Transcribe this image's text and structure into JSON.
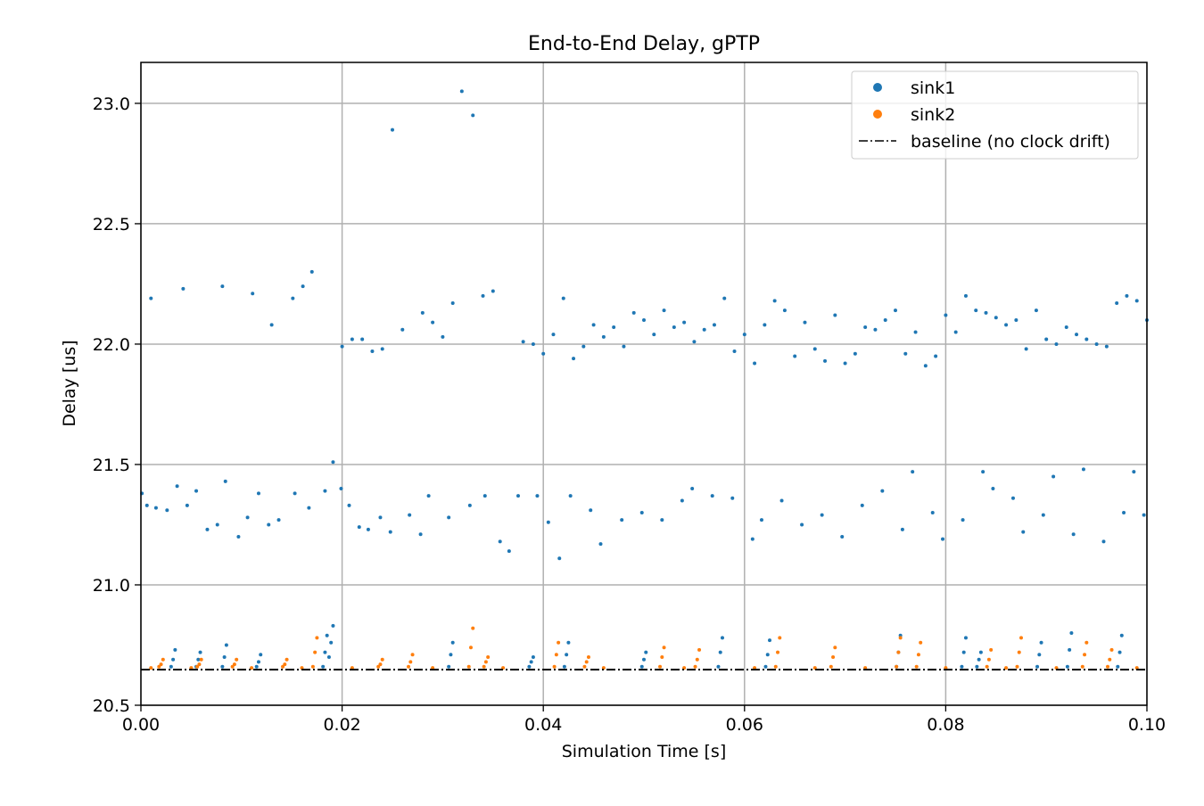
{
  "chart_data": {
    "type": "scatter",
    "title": "End-to-End Delay, gPTP",
    "x_label": "Simulation Time [s]",
    "y_label": "Delay [us]",
    "xlim": [
      0,
      0.1
    ],
    "ylim": [
      20.5,
      23.17
    ],
    "xticks": [
      {
        "value": 0,
        "label": "0.00"
      },
      0.02,
      0.04,
      0.06,
      0.08,
      {
        "value": 0.1,
        "label": "0.10"
      }
    ],
    "yticks": [
      20.5,
      {
        "value": 21,
        "label": "21.0"
      },
      21.5,
      {
        "value": 22,
        "label": "22.0"
      },
      22.5,
      {
        "value": 23,
        "label": "23.0"
      }
    ],
    "grid": true,
    "legend": "upper right",
    "series": [
      {
        "name": "sink1",
        "color": "#1f77b4",
        "x": [
          0.0319,
          0.033,
          0.025,
          0.001,
          0.0042,
          0.0081,
          0.0111,
          0.013,
          0.0151,
          0.0161,
          0.017,
          0.02,
          0.021,
          0.022,
          0.023,
          0.024,
          0.026,
          0.028,
          0.029,
          0.03,
          0.031,
          0.034,
          0.035,
          0.038,
          0.039,
          0.04,
          0.041,
          0.042,
          0.043,
          0.044,
          0.045,
          0.046,
          0.047,
          0.048,
          0.049,
          0.05,
          0.051,
          0.052,
          0.053,
          0.054,
          0.055,
          0.056,
          0.057,
          0.058,
          0.059,
          0.06,
          0.061,
          0.062,
          0.063,
          0.064,
          0.065,
          0.066,
          0.067,
          0.068,
          0.069,
          0.07,
          0.071,
          0.072,
          0.073,
          0.074,
          0.075,
          0.076,
          0.077,
          0.078,
          0.079,
          0.08,
          0.081,
          0.082,
          0.083,
          0.084,
          0.085,
          0.086,
          0.087,
          0.088,
          0.089,
          0.09,
          0.091,
          0.092,
          0.093,
          0.094,
          0.095,
          0.096,
          0.097,
          0.098,
          0.099,
          0.1,
          0.0001,
          0.0006,
          0.0015,
          0.0026,
          0.0036,
          0.0046,
          0.0055,
          0.0066,
          0.0076,
          0.0084,
          0.0097,
          0.0106,
          0.0117,
          0.0127,
          0.0137,
          0.0153,
          0.0167,
          0.0183,
          0.0191,
          0.0199,
          0.0207,
          0.0217,
          0.0226,
          0.0238,
          0.0248,
          0.0267,
          0.0278,
          0.0286,
          0.0306,
          0.0327,
          0.0342,
          0.0357,
          0.0366,
          0.0375,
          0.0394,
          0.0405,
          0.0416,
          0.0427,
          0.0447,
          0.0457,
          0.0478,
          0.0498,
          0.0518,
          0.0538,
          0.0548,
          0.0568,
          0.0588,
          0.0608,
          0.0617,
          0.0637,
          0.0657,
          0.0677,
          0.0697,
          0.0717,
          0.0737,
          0.0757,
          0.0767,
          0.0787,
          0.0797,
          0.0817,
          0.0837,
          0.0847,
          0.0867,
          0.0877,
          0.0897,
          0.0907,
          0.0927,
          0.0937,
          0.0957,
          0.0977,
          0.0987,
          0.0997,
          0.003,
          0.0032,
          0.0034,
          0.0055,
          0.0057,
          0.0059,
          0.0081,
          0.0083,
          0.0085,
          0.0115,
          0.0117,
          0.0119,
          0.0181,
          0.0183,
          0.0185,
          0.0187,
          0.0189,
          0.0191,
          0.0306,
          0.0308,
          0.031,
          0.0386,
          0.0388,
          0.039,
          0.0421,
          0.0423,
          0.0425,
          0.0498,
          0.05,
          0.0502,
          0.0574,
          0.0576,
          0.0578,
          0.0621,
          0.0623,
          0.0625,
          0.0751,
          0.0753,
          0.0755,
          0.0816,
          0.0818,
          0.082,
          0.0831,
          0.0833,
          0.0835,
          0.0891,
          0.0893,
          0.0895,
          0.0921,
          0.0923,
          0.0925,
          0.0971,
          0.0973,
          0.0975
        ],
        "values": [
          23.05,
          22.95,
          22.89,
          22.19,
          22.23,
          22.24,
          22.21,
          22.08,
          22.19,
          22.24,
          22.3,
          21.99,
          22.02,
          22.02,
          21.97,
          21.98,
          22.06,
          22.13,
          22.09,
          22.03,
          22.17,
          22.2,
          22.22,
          22.01,
          22.0,
          21.96,
          22.04,
          22.19,
          21.94,
          21.99,
          22.08,
          22.03,
          22.07,
          21.99,
          22.13,
          22.1,
          22.04,
          22.14,
          22.07,
          22.09,
          22.01,
          22.06,
          22.08,
          22.19,
          21.97,
          22.04,
          21.92,
          22.08,
          22.18,
          22.14,
          21.95,
          22.09,
          21.98,
          21.93,
          22.12,
          21.92,
          21.96,
          22.07,
          22.06,
          22.1,
          22.14,
          21.96,
          22.05,
          21.91,
          21.95,
          22.12,
          22.05,
          22.2,
          22.14,
          22.13,
          22.11,
          22.08,
          22.1,
          21.98,
          22.14,
          22.02,
          22.0,
          22.07,
          22.04,
          22.02,
          22.0,
          21.99,
          22.17,
          22.2,
          22.18,
          22.1,
          21.38,
          21.33,
          21.32,
          21.31,
          21.41,
          21.33,
          21.39,
          21.23,
          21.25,
          21.43,
          21.2,
          21.28,
          21.38,
          21.25,
          21.27,
          21.38,
          21.32,
          21.39,
          21.51,
          21.4,
          21.33,
          21.24,
          21.23,
          21.28,
          21.22,
          21.29,
          21.21,
          21.37,
          21.28,
          21.33,
          21.37,
          21.18,
          21.14,
          21.37,
          21.37,
          21.26,
          21.11,
          21.37,
          21.31,
          21.17,
          21.27,
          21.3,
          21.27,
          21.35,
          21.4,
          21.37,
          21.36,
          21.19,
          21.27,
          21.35,
          21.25,
          21.29,
          21.2,
          21.33,
          21.39,
          21.23,
          21.47,
          21.3,
          21.19,
          21.27,
          21.47,
          21.4,
          21.36,
          21.22,
          21.29,
          21.45,
          21.21,
          21.48,
          21.18,
          21.3,
          21.47,
          21.29,
          20.66,
          20.69,
          20.73,
          20.66,
          20.69,
          20.72,
          20.66,
          20.7,
          20.75,
          20.66,
          20.68,
          20.71,
          20.66,
          20.72,
          20.79,
          20.7,
          20.76,
          20.83,
          20.66,
          20.71,
          20.76,
          20.66,
          20.68,
          20.7,
          20.66,
          20.71,
          20.76,
          20.66,
          20.69,
          20.72,
          20.66,
          20.72,
          20.78,
          20.66,
          20.71,
          20.77,
          20.66,
          20.72,
          20.79,
          20.66,
          20.72,
          20.78,
          20.66,
          20.69,
          20.72,
          20.66,
          20.71,
          20.76,
          20.66,
          20.73,
          20.8,
          20.66,
          20.72,
          20.79
        ]
      },
      {
        "name": "sink2",
        "color": "#ff7f0e",
        "x": [
          0.0018,
          0.002,
          0.0022,
          0.0056,
          0.0058,
          0.006,
          0.0091,
          0.0093,
          0.0095,
          0.0141,
          0.0143,
          0.0145,
          0.0171,
          0.0173,
          0.0175,
          0.0236,
          0.0238,
          0.024,
          0.0266,
          0.0268,
          0.027,
          0.0326,
          0.0328,
          0.033,
          0.0341,
          0.0343,
          0.0345,
          0.0411,
          0.0413,
          0.0415,
          0.0441,
          0.0443,
          0.0445,
          0.0516,
          0.0518,
          0.052,
          0.0551,
          0.0553,
          0.0555,
          0.0631,
          0.0633,
          0.0635,
          0.0686,
          0.0688,
          0.069,
          0.0751,
          0.0753,
          0.0755,
          0.0771,
          0.0773,
          0.0775,
          0.0841,
          0.0843,
          0.0845,
          0.0871,
          0.0873,
          0.0875,
          0.0936,
          0.0938,
          0.094,
          0.0961,
          0.0963,
          0.0965,
          0.001,
          0.005,
          0.011,
          0.016,
          0.021,
          0.029,
          0.036,
          0.046,
          0.054,
          0.061,
          0.067,
          0.072,
          0.08,
          0.086,
          0.091,
          0.099
        ],
        "values": [
          20.66,
          20.67,
          20.69,
          20.66,
          20.67,
          20.69,
          20.66,
          20.67,
          20.69,
          20.66,
          20.67,
          20.69,
          20.66,
          20.72,
          20.78,
          20.66,
          20.67,
          20.69,
          20.66,
          20.68,
          20.71,
          20.66,
          20.74,
          20.82,
          20.66,
          20.68,
          20.7,
          20.66,
          20.71,
          20.76,
          20.66,
          20.68,
          20.7,
          20.66,
          20.7,
          20.74,
          20.66,
          20.69,
          20.73,
          20.66,
          20.72,
          20.78,
          20.66,
          20.7,
          20.74,
          20.66,
          20.72,
          20.78,
          20.66,
          20.71,
          20.76,
          20.66,
          20.69,
          20.73,
          20.66,
          20.72,
          20.78,
          20.66,
          20.71,
          20.76,
          20.66,
          20.69,
          20.73,
          20.655,
          20.655,
          20.655,
          20.655,
          20.655,
          20.655,
          20.655,
          20.655,
          20.655,
          20.655,
          20.655,
          20.655,
          20.655,
          20.655,
          20.655,
          20.655
        ]
      }
    ],
    "baseline": {
      "name": "baseline (no clock drift)",
      "y": 20.648,
      "color": "#000000"
    }
  }
}
